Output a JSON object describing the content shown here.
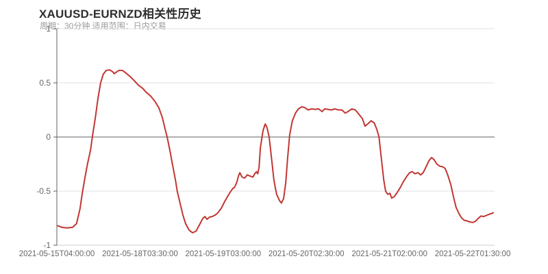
{
  "chart_data": {
    "type": "line",
    "title": "XAUUSD-EURNZD相关性历史",
    "subtitle": "周期：30分钟 适用范围：日内交易",
    "xlabel": "",
    "ylabel": "",
    "ylim": [
      -1,
      1
    ],
    "grid": "horizontal-only",
    "legend": "none",
    "y_ticks": [
      {
        "label": "1",
        "value": 1
      },
      {
        "label": "0.5",
        "value": 0.5
      },
      {
        "label": "0",
        "value": 0
      },
      {
        "label": "-0.5",
        "value": -0.5
      },
      {
        "label": "-1",
        "value": -1
      }
    ],
    "x_ticks": [
      {
        "label": "2021-05-15T04:00:00",
        "pos": 0.0
      },
      {
        "label": "2021-05-18T03:30:00",
        "pos": 0.19
      },
      {
        "label": "2021-05-19T03:00:00",
        "pos": 0.38
      },
      {
        "label": "2021-05-20T02:30:00",
        "pos": 0.57
      },
      {
        "label": "2021-05-21T02:00:00",
        "pos": 0.76
      },
      {
        "label": "2021-05-22T01:30:00",
        "pos": 0.95
      }
    ],
    "style": {
      "line_color": "#c23531",
      "grid_color": "#e0e0e0",
      "zero_line_color": "#5f5f5f",
      "yaxis_color": "#5f5f5f",
      "axis_line_color": "#cccccc",
      "label_color": "#666666",
      "title_color": "#2e2e2e",
      "subtitle_color": "#9a9a9a"
    },
    "series": [
      {
        "color": "#c23531",
        "points": [
          [
            0.002,
            -0.82
          ],
          [
            0.012,
            -0.835
          ],
          [
            0.023,
            -0.84
          ],
          [
            0.036,
            -0.835
          ],
          [
            0.045,
            -0.8
          ],
          [
            0.053,
            -0.66
          ],
          [
            0.058,
            -0.52
          ],
          [
            0.064,
            -0.38
          ],
          [
            0.07,
            -0.25
          ],
          [
            0.077,
            -0.12
          ],
          [
            0.081,
            0.0
          ],
          [
            0.088,
            0.18
          ],
          [
            0.094,
            0.36
          ],
          [
            0.1,
            0.5
          ],
          [
            0.106,
            0.58
          ],
          [
            0.113,
            0.615
          ],
          [
            0.12,
            0.62
          ],
          [
            0.127,
            0.605
          ],
          [
            0.131,
            0.585
          ],
          [
            0.136,
            0.6
          ],
          [
            0.142,
            0.615
          ],
          [
            0.15,
            0.615
          ],
          [
            0.158,
            0.59
          ],
          [
            0.167,
            0.56
          ],
          [
            0.177,
            0.52
          ],
          [
            0.186,
            0.48
          ],
          [
            0.196,
            0.45
          ],
          [
            0.205,
            0.41
          ],
          [
            0.214,
            0.38
          ],
          [
            0.224,
            0.33
          ],
          [
            0.233,
            0.27
          ],
          [
            0.241,
            0.18
          ],
          [
            0.247,
            0.08
          ],
          [
            0.252,
            0.0
          ],
          [
            0.258,
            -0.12
          ],
          [
            0.264,
            -0.25
          ],
          [
            0.271,
            -0.4
          ],
          [
            0.275,
            -0.5
          ],
          [
            0.282,
            -0.62
          ],
          [
            0.288,
            -0.72
          ],
          [
            0.294,
            -0.8
          ],
          [
            0.302,
            -0.86
          ],
          [
            0.31,
            -0.885
          ],
          [
            0.318,
            -0.87
          ],
          [
            0.326,
            -0.81
          ],
          [
            0.333,
            -0.755
          ],
          [
            0.338,
            -0.735
          ],
          [
            0.343,
            -0.76
          ],
          [
            0.349,
            -0.74
          ],
          [
            0.355,
            -0.735
          ],
          [
            0.362,
            -0.72
          ],
          [
            0.368,
            -0.7
          ],
          [
            0.376,
            -0.655
          ],
          [
            0.383,
            -0.6
          ],
          [
            0.39,
            -0.55
          ],
          [
            0.396,
            -0.51
          ],
          [
            0.402,
            -0.475
          ],
          [
            0.406,
            -0.465
          ],
          [
            0.411,
            -0.42
          ],
          [
            0.415,
            -0.36
          ],
          [
            0.418,
            -0.33
          ],
          [
            0.423,
            -0.37
          ],
          [
            0.429,
            -0.38
          ],
          [
            0.435,
            -0.35
          ],
          [
            0.441,
            -0.36
          ],
          [
            0.448,
            -0.37
          ],
          [
            0.452,
            -0.34
          ],
          [
            0.456,
            -0.32
          ],
          [
            0.459,
            -0.34
          ],
          [
            0.462,
            -0.28
          ],
          [
            0.465,
            -0.1
          ],
          [
            0.471,
            0.06
          ],
          [
            0.476,
            0.12
          ],
          [
            0.48,
            0.09
          ],
          [
            0.485,
            0.0
          ],
          [
            0.49,
            -0.18
          ],
          [
            0.496,
            -0.4
          ],
          [
            0.502,
            -0.53
          ],
          [
            0.509,
            -0.59
          ],
          [
            0.513,
            -0.61
          ],
          [
            0.518,
            -0.57
          ],
          [
            0.523,
            -0.42
          ],
          [
            0.527,
            -0.2
          ],
          [
            0.532,
            0.02
          ],
          [
            0.538,
            0.15
          ],
          [
            0.545,
            0.22
          ],
          [
            0.552,
            0.26
          ],
          [
            0.56,
            0.28
          ],
          [
            0.567,
            0.27
          ],
          [
            0.574,
            0.25
          ],
          [
            0.582,
            0.26
          ],
          [
            0.59,
            0.255
          ],
          [
            0.598,
            0.26
          ],
          [
            0.606,
            0.235
          ],
          [
            0.612,
            0.26
          ],
          [
            0.62,
            0.255
          ],
          [
            0.628,
            0.25
          ],
          [
            0.635,
            0.26
          ],
          [
            0.643,
            0.25
          ],
          [
            0.651,
            0.25
          ],
          [
            0.659,
            0.22
          ],
          [
            0.667,
            0.24
          ],
          [
            0.674,
            0.26
          ],
          [
            0.682,
            0.25
          ],
          [
            0.69,
            0.21
          ],
          [
            0.698,
            0.17
          ],
          [
            0.704,
            0.1
          ],
          [
            0.71,
            0.12
          ],
          [
            0.718,
            0.15
          ],
          [
            0.725,
            0.13
          ],
          [
            0.731,
            0.07
          ],
          [
            0.736,
            0.0
          ],
          [
            0.742,
            -0.22
          ],
          [
            0.747,
            -0.4
          ],
          [
            0.751,
            -0.5
          ],
          [
            0.756,
            -0.53
          ],
          [
            0.761,
            -0.52
          ],
          [
            0.765,
            -0.565
          ],
          [
            0.771,
            -0.55
          ],
          [
            0.778,
            -0.51
          ],
          [
            0.784,
            -0.47
          ],
          [
            0.792,
            -0.41
          ],
          [
            0.8,
            -0.36
          ],
          [
            0.806,
            -0.33
          ],
          [
            0.812,
            -0.32
          ],
          [
            0.818,
            -0.34
          ],
          [
            0.825,
            -0.33
          ],
          [
            0.831,
            -0.35
          ],
          [
            0.837,
            -0.33
          ],
          [
            0.843,
            -0.28
          ],
          [
            0.85,
            -0.22
          ],
          [
            0.856,
            -0.19
          ],
          [
            0.862,
            -0.21
          ],
          [
            0.868,
            -0.25
          ],
          [
            0.875,
            -0.27
          ],
          [
            0.881,
            -0.275
          ],
          [
            0.887,
            -0.29
          ],
          [
            0.893,
            -0.35
          ],
          [
            0.9,
            -0.44
          ],
          [
            0.906,
            -0.55
          ],
          [
            0.912,
            -0.65
          ],
          [
            0.919,
            -0.71
          ],
          [
            0.925,
            -0.75
          ],
          [
            0.931,
            -0.77
          ],
          [
            0.937,
            -0.775
          ],
          [
            0.944,
            -0.785
          ],
          [
            0.95,
            -0.79
          ],
          [
            0.956,
            -0.78
          ],
          [
            0.962,
            -0.755
          ],
          [
            0.969,
            -0.73
          ],
          [
            0.975,
            -0.735
          ],
          [
            0.981,
            -0.725
          ],
          [
            0.987,
            -0.715
          ],
          [
            0.994,
            -0.705
          ],
          [
            0.997,
            -0.7
          ]
        ]
      }
    ]
  }
}
